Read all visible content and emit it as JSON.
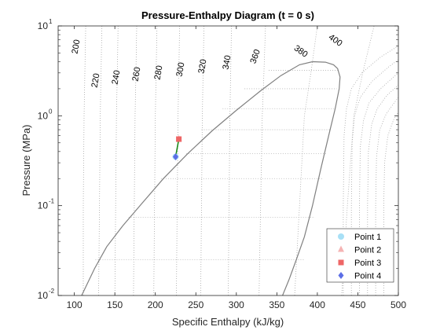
{
  "chart_data": {
    "type": "line",
    "title": "Pressure-Enthalpy Diagram (t = 0 s)",
    "xlabel": "Specific Enthalpy (kJ/kg)",
    "ylabel": "Pressure (MPa)",
    "xlim": [
      80,
      500
    ],
    "ylim": [
      0.01,
      10
    ],
    "yscale": "log",
    "grid": false,
    "x_ticks": [
      100,
      150,
      200,
      250,
      300,
      350,
      400,
      450,
      500
    ],
    "y_ticks": [
      {
        "value": 0.01,
        "base": "10",
        "exp": "-2"
      },
      {
        "value": 0.1,
        "base": "10",
        "exp": "-1"
      },
      {
        "value": 1,
        "base": "10",
        "exp": "0"
      },
      {
        "value": 10,
        "base": "10",
        "exp": "1"
      }
    ],
    "colors": {
      "dome": "#808080",
      "isotherm": "#a6a6a6",
      "quality_line": "#b3b3b3",
      "cycle_line": "#1a8a1a",
      "point1": "#a8e0f6",
      "point2": "#f5b3b3",
      "point3": "#ee6666",
      "point4": "#5c6ee6"
    },
    "saturation_dome": {
      "h": [
        109,
        125,
        140,
        160,
        185,
        210,
        240,
        270,
        300,
        330,
        355,
        378,
        394,
        410,
        420,
        425,
        428,
        427,
        422,
        414,
        404,
        394,
        384,
        374,
        365,
        357
      ],
      "p": [
        0.01,
        0.02,
        0.035,
        0.06,
        0.11,
        0.2,
        0.38,
        0.68,
        1.15,
        1.9,
        2.8,
        3.7,
        4.0,
        3.95,
        3.7,
        3.35,
        2.7,
        2.0,
        1.2,
        0.6,
        0.25,
        0.1,
        0.045,
        0.025,
        0.015,
        0.01
      ]
    },
    "quality_lines": [
      {
        "p": 3.2,
        "h": [
          340,
          425
        ]
      },
      {
        "p": 2.0,
        "h": [
          310,
          424
        ]
      },
      {
        "p": 1.2,
        "h": [
          283,
          421
        ]
      },
      {
        "p": 0.7,
        "h": [
          257,
          417
        ]
      },
      {
        "p": 0.38,
        "h": [
          238,
          412
        ]
      },
      {
        "p": 0.2,
        "h": [
          207,
          406
        ]
      },
      {
        "p": 0.074,
        "h": [
          167,
          397
        ]
      },
      {
        "p": 0.025,
        "h": [
          126,
          384
        ]
      }
    ],
    "isotherm_labels": [
      "200",
      "220",
      "240",
      "260",
      "280",
      "300",
      "320",
      "340",
      "360",
      "380",
      "400"
    ],
    "isotherms": [
      {
        "label": "200",
        "h": [
          111,
          111,
          112,
          113,
          114
        ]
      },
      {
        "label": "220",
        "h": [
          130,
          131,
          132,
          133,
          134
        ]
      },
      {
        "label": "240",
        "h": [
          150,
          151,
          152,
          153,
          154
        ]
      },
      {
        "label": "260",
        "h": [
          173,
          174,
          175,
          176,
          177
        ]
      },
      {
        "label": "280",
        "h": [
          198,
          199,
          200,
          201,
          202
        ]
      },
      {
        "label": "300",
        "h": [
          226,
          227,
          228,
          229,
          230
        ]
      },
      {
        "label": "320",
        "h": [
          256,
          257,
          258,
          259,
          260
        ]
      },
      {
        "label": "340",
        "h": [
          290,
          291,
          292,
          293,
          294
        ]
      },
      {
        "label": "360",
        "h": [
          328,
          330,
          332,
          334,
          336
        ]
      },
      {
        "label": "380",
        "h": [
          372,
          378,
          384,
          392,
          400
        ]
      },
      {
        "label": "400",
        "h": [
          430,
          437,
          445,
          456,
          470
        ]
      }
    ],
    "isotherm_p": [
      0.01,
      0.1,
      1,
      3,
      10
    ],
    "superheat_isotherms": [
      {
        "h": [
          432,
          432,
          433,
          436,
          442,
          455,
          478,
          500
        ],
        "p": [
          0.01,
          0.1,
          0.6,
          1.2,
          2.0,
          3.0,
          4.5,
          6.0
        ]
      },
      {
        "h": [
          442,
          442,
          443,
          446,
          453,
          467,
          488,
          500
        ],
        "p": [
          0.01,
          0.1,
          0.5,
          1.0,
          1.6,
          2.4,
          3.5,
          4.2
        ]
      },
      {
        "h": [
          452,
          452,
          453,
          457,
          464,
          478,
          494,
          500
        ],
        "p": [
          0.01,
          0.1,
          0.45,
          0.9,
          1.4,
          2.0,
          2.7,
          3.0
        ]
      },
      {
        "h": [
          462,
          462,
          463,
          467,
          474,
          486,
          500
        ],
        "p": [
          0.01,
          0.1,
          0.4,
          0.8,
          1.2,
          1.7,
          2.2
        ]
      },
      {
        "h": [
          472,
          472,
          473,
          477,
          485,
          495,
          500
        ],
        "p": [
          0.01,
          0.1,
          0.35,
          0.7,
          1.05,
          1.4,
          1.6
        ]
      },
      {
        "h": [
          482,
          482,
          483,
          487,
          494,
          500
        ],
        "p": [
          0.01,
          0.1,
          0.3,
          0.6,
          0.9,
          1.1
        ]
      }
    ],
    "cycle_line": {
      "h": [
        225,
        229
      ],
      "p": [
        0.35,
        0.55
      ]
    },
    "points": [
      {
        "name": "Point 1",
        "h": 225,
        "p": 0.35,
        "marker": "circle",
        "color": "#a8e0f6"
      },
      {
        "name": "Point 2",
        "h": 229,
        "p": 0.55,
        "marker": "triangle",
        "color": "#f5b3b3"
      },
      {
        "name": "Point 3",
        "h": 229,
        "p": 0.55,
        "marker": "square",
        "color": "#ee6666"
      },
      {
        "name": "Point 4",
        "h": 225,
        "p": 0.35,
        "marker": "diamond",
        "color": "#5c6ee6"
      }
    ],
    "legend": {
      "position": "bottom-right"
    }
  }
}
